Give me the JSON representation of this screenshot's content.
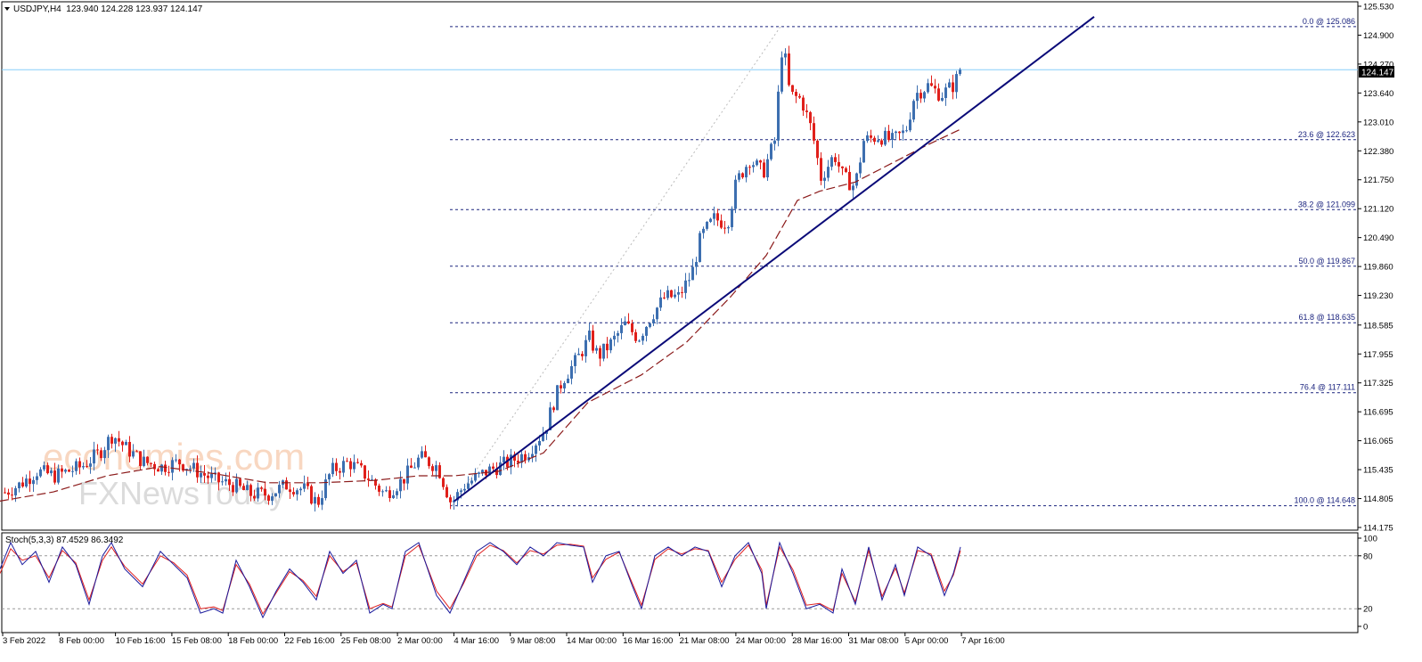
{
  "header": {
    "symbol_line": "USDJPY,H4  123.940 124.228 123.937 124.147"
  },
  "watermark": {
    "brand_top": "economies.com",
    "brand_bottom": "FXNewsToday"
  },
  "colors": {
    "bull": "#3d6fb0",
    "bear": "#e0201b",
    "ma": "#8b1a1a",
    "fib": "#1a237e",
    "trend": "#0a0a78",
    "stoch_main": "#1a1a9c",
    "stoch_signal": "#e02020",
    "price_line": "#87cefa"
  },
  "chart_data": [
    {
      "type": "candlestick",
      "symbol": "USDJPY",
      "timeframe": "H4",
      "ohlc": {
        "open": 123.94,
        "high": 124.228,
        "low": 123.937,
        "close": 124.147
      },
      "current_price": "124.147",
      "ylim": [
        114.175,
        125.53
      ],
      "y_ticks": [
        "125.530",
        "124.900",
        "124.270",
        "123.640",
        "123.010",
        "122.380",
        "121.750",
        "121.120",
        "120.490",
        "119.860",
        "119.230",
        "118.585",
        "117.955",
        "117.325",
        "116.695",
        "116.065",
        "115.435",
        "114.805",
        "114.175"
      ],
      "x_ticks": [
        "3 Feb 2022",
        "8 Feb 00:00",
        "10 Feb 16:00",
        "15 Feb 08:00",
        "18 Feb 00:00",
        "22 Feb 16:00",
        "25 Feb 08:00",
        "2 Mar 00:00",
        "4 Mar 16:00",
        "9 Mar 08:00",
        "14 Mar 00:00",
        "16 Mar 16:00",
        "21 Mar 08:00",
        "24 Mar 00:00",
        "28 Mar 16:00",
        "31 Mar 08:00",
        "5 Apr 00:00",
        "7 Apr 16:00"
      ],
      "price_path": [
        [
          0,
          114.9
        ],
        [
          20,
          115.1
        ],
        [
          40,
          115.4
        ],
        [
          60,
          115.3
        ],
        [
          90,
          115.5
        ],
        [
          110,
          115.8
        ],
        [
          125,
          116.2
        ],
        [
          140,
          115.9
        ],
        [
          160,
          115.6
        ],
        [
          180,
          115.5
        ],
        [
          200,
          115.6
        ],
        [
          220,
          115.4
        ],
        [
          240,
          115.2
        ],
        [
          260,
          115.1
        ],
        [
          280,
          114.9
        ],
        [
          300,
          114.9
        ],
        [
          320,
          115.1
        ],
        [
          340,
          115.0
        ],
        [
          355,
          114.7
        ],
        [
          370,
          115.4
        ],
        [
          390,
          115.6
        ],
        [
          410,
          115.3
        ],
        [
          430,
          114.9
        ],
        [
          450,
          115.2
        ],
        [
          470,
          115.7
        ],
        [
          490,
          115.5
        ],
        [
          505,
          114.7
        ],
        [
          520,
          115.1
        ],
        [
          545,
          115.4
        ],
        [
          570,
          115.6
        ],
        [
          590,
          115.8
        ],
        [
          610,
          116.3
        ],
        [
          620,
          116.9
        ],
        [
          630,
          117.4
        ],
        [
          645,
          117.8
        ],
        [
          660,
          118.3
        ],
        [
          670,
          117.9
        ],
        [
          685,
          118.2
        ],
        [
          700,
          118.6
        ],
        [
          715,
          118.3
        ],
        [
          730,
          118.8
        ],
        [
          745,
          119.2
        ],
        [
          760,
          119.2
        ],
        [
          775,
          119.7
        ],
        [
          785,
          120.5
        ],
        [
          800,
          120.9
        ],
        [
          815,
          120.8
        ],
        [
          825,
          121.7
        ],
        [
          840,
          122.2
        ],
        [
          855,
          121.9
        ],
        [
          868,
          122.6
        ],
        [
          877,
          124.8
        ],
        [
          885,
          123.6
        ],
        [
          898,
          123.5
        ],
        [
          910,
          122.8
        ],
        [
          920,
          121.8
        ],
        [
          935,
          122.3
        ],
        [
          945,
          121.8
        ],
        [
          958,
          121.6
        ],
        [
          968,
          122.6
        ],
        [
          985,
          122.7
        ],
        [
          1000,
          122.6
        ],
        [
          1015,
          122.8
        ],
        [
          1025,
          123.6
        ],
        [
          1040,
          123.8
        ],
        [
          1055,
          123.6
        ],
        [
          1068,
          123.8
        ],
        [
          1078,
          124.15
        ]
      ],
      "moving_average": [
        [
          0,
          114.75
        ],
        [
          60,
          114.95
        ],
        [
          120,
          115.3
        ],
        [
          180,
          115.5
        ],
        [
          240,
          115.35
        ],
        [
          300,
          115.15
        ],
        [
          360,
          115.15
        ],
        [
          420,
          115.2
        ],
        [
          470,
          115.3
        ],
        [
          510,
          115.3
        ],
        [
          560,
          115.4
        ],
        [
          610,
          115.8
        ],
        [
          660,
          116.9
        ],
        [
          720,
          117.5
        ],
        [
          770,
          118.2
        ],
        [
          820,
          119.2
        ],
        [
          860,
          120.1
        ],
        [
          895,
          121.3
        ],
        [
          920,
          121.5
        ],
        [
          960,
          121.7
        ],
        [
          1000,
          122.1
        ],
        [
          1040,
          122.5
        ],
        [
          1078,
          122.85
        ]
      ],
      "trendline": {
        "from": [
          510,
          114.75
        ],
        "to": [
          1228,
          125.3
        ]
      },
      "fibonacci": {
        "x_start": 505,
        "levels": [
          {
            "label": "0.0 @ 125.086",
            "price": 125.086
          },
          {
            "label": "23.6 @ 122.623",
            "price": 122.623
          },
          {
            "label": "38.2 @ 121.099",
            "price": 121.099
          },
          {
            "label": "50.0 @ 119.867",
            "price": 119.867
          },
          {
            "label": "61.8 @ 118.635",
            "price": 118.635
          },
          {
            "label": "76.4 @ 117.111",
            "price": 117.111
          },
          {
            "label": "100.0 @ 114.648",
            "price": 114.648
          }
        ]
      }
    },
    {
      "type": "line",
      "indicator_label": "Stoch(5,3,3) 87.4529 86.3492",
      "ylim": [
        0,
        100
      ],
      "y_ticks": [
        "100",
        "80",
        "20",
        "0"
      ],
      "levels": [
        80,
        20
      ],
      "main": [
        [
          0,
          65
        ],
        [
          12,
          95
        ],
        [
          25,
          70
        ],
        [
          40,
          85
        ],
        [
          55,
          50
        ],
        [
          70,
          90
        ],
        [
          85,
          70
        ],
        [
          100,
          25
        ],
        [
          115,
          80
        ],
        [
          125,
          95
        ],
        [
          140,
          65
        ],
        [
          160,
          45
        ],
        [
          180,
          85
        ],
        [
          195,
          70
        ],
        [
          210,
          55
        ],
        [
          225,
          15
        ],
        [
          240,
          20
        ],
        [
          250,
          15
        ],
        [
          265,
          75
        ],
        [
          280,
          45
        ],
        [
          295,
          10
        ],
        [
          310,
          40
        ],
        [
          325,
          65
        ],
        [
          340,
          50
        ],
        [
          355,
          30
        ],
        [
          370,
          85
        ],
        [
          385,
          60
        ],
        [
          400,
          75
        ],
        [
          415,
          15
        ],
        [
          430,
          25
        ],
        [
          440,
          20
        ],
        [
          455,
          85
        ],
        [
          470,
          95
        ],
        [
          490,
          35
        ],
        [
          505,
          15
        ],
        [
          520,
          50
        ],
        [
          535,
          85
        ],
        [
          550,
          95
        ],
        [
          565,
          85
        ],
        [
          580,
          70
        ],
        [
          595,
          90
        ],
        [
          610,
          80
        ],
        [
          625,
          95
        ],
        [
          640,
          92
        ],
        [
          655,
          90
        ],
        [
          665,
          50
        ],
        [
          680,
          80
        ],
        [
          695,
          85
        ],
        [
          710,
          45
        ],
        [
          720,
          20
        ],
        [
          735,
          80
        ],
        [
          750,
          90
        ],
        [
          765,
          80
        ],
        [
          780,
          90
        ],
        [
          795,
          85
        ],
        [
          810,
          45
        ],
        [
          825,
          80
        ],
        [
          840,
          95
        ],
        [
          855,
          60
        ],
        [
          860,
          20
        ],
        [
          875,
          95
        ],
        [
          890,
          60
        ],
        [
          905,
          20
        ],
        [
          920,
          25
        ],
        [
          935,
          15
        ],
        [
          945,
          65
        ],
        [
          960,
          25
        ],
        [
          975,
          90
        ],
        [
          990,
          30
        ],
        [
          1005,
          70
        ],
        [
          1015,
          35
        ],
        [
          1030,
          90
        ],
        [
          1045,
          80
        ],
        [
          1060,
          35
        ],
        [
          1070,
          60
        ],
        [
          1078,
          90
        ]
      ],
      "signal": [
        [
          0,
          60
        ],
        [
          12,
          88
        ],
        [
          25,
          75
        ],
        [
          40,
          80
        ],
        [
          55,
          55
        ],
        [
          70,
          86
        ],
        [
          85,
          72
        ],
        [
          100,
          30
        ],
        [
          115,
          75
        ],
        [
          125,
          90
        ],
        [
          140,
          68
        ],
        [
          160,
          48
        ],
        [
          180,
          80
        ],
        [
          195,
          72
        ],
        [
          210,
          58
        ],
        [
          225,
          20
        ],
        [
          240,
          22
        ],
        [
          250,
          18
        ],
        [
          265,
          70
        ],
        [
          280,
          48
        ],
        [
          295,
          14
        ],
        [
          310,
          38
        ],
        [
          325,
          62
        ],
        [
          340,
          52
        ],
        [
          355,
          34
        ],
        [
          370,
          80
        ],
        [
          385,
          62
        ],
        [
          400,
          72
        ],
        [
          415,
          20
        ],
        [
          430,
          26
        ],
        [
          440,
          22
        ],
        [
          455,
          80
        ],
        [
          470,
          92
        ],
        [
          490,
          40
        ],
        [
          505,
          20
        ],
        [
          520,
          48
        ],
        [
          535,
          80
        ],
        [
          550,
          92
        ],
        [
          565,
          86
        ],
        [
          580,
          72
        ],
        [
          595,
          86
        ],
        [
          610,
          82
        ],
        [
          625,
          92
        ],
        [
          640,
          93
        ],
        [
          655,
          91
        ],
        [
          665,
          55
        ],
        [
          680,
          76
        ],
        [
          695,
          84
        ],
        [
          710,
          48
        ],
        [
          720,
          24
        ],
        [
          735,
          76
        ],
        [
          750,
          88
        ],
        [
          765,
          82
        ],
        [
          780,
          88
        ],
        [
          795,
          86
        ],
        [
          810,
          50
        ],
        [
          825,
          76
        ],
        [
          840,
          92
        ],
        [
          855,
          64
        ],
        [
          860,
          24
        ],
        [
          875,
          90
        ],
        [
          890,
          64
        ],
        [
          905,
          24
        ],
        [
          920,
          26
        ],
        [
          935,
          18
        ],
        [
          945,
          60
        ],
        [
          960,
          28
        ],
        [
          975,
          86
        ],
        [
          990,
          34
        ],
        [
          1005,
          66
        ],
        [
          1015,
          38
        ],
        [
          1030,
          86
        ],
        [
          1045,
          82
        ],
        [
          1060,
          40
        ],
        [
          1070,
          58
        ],
        [
          1078,
          86
        ]
      ]
    }
  ]
}
